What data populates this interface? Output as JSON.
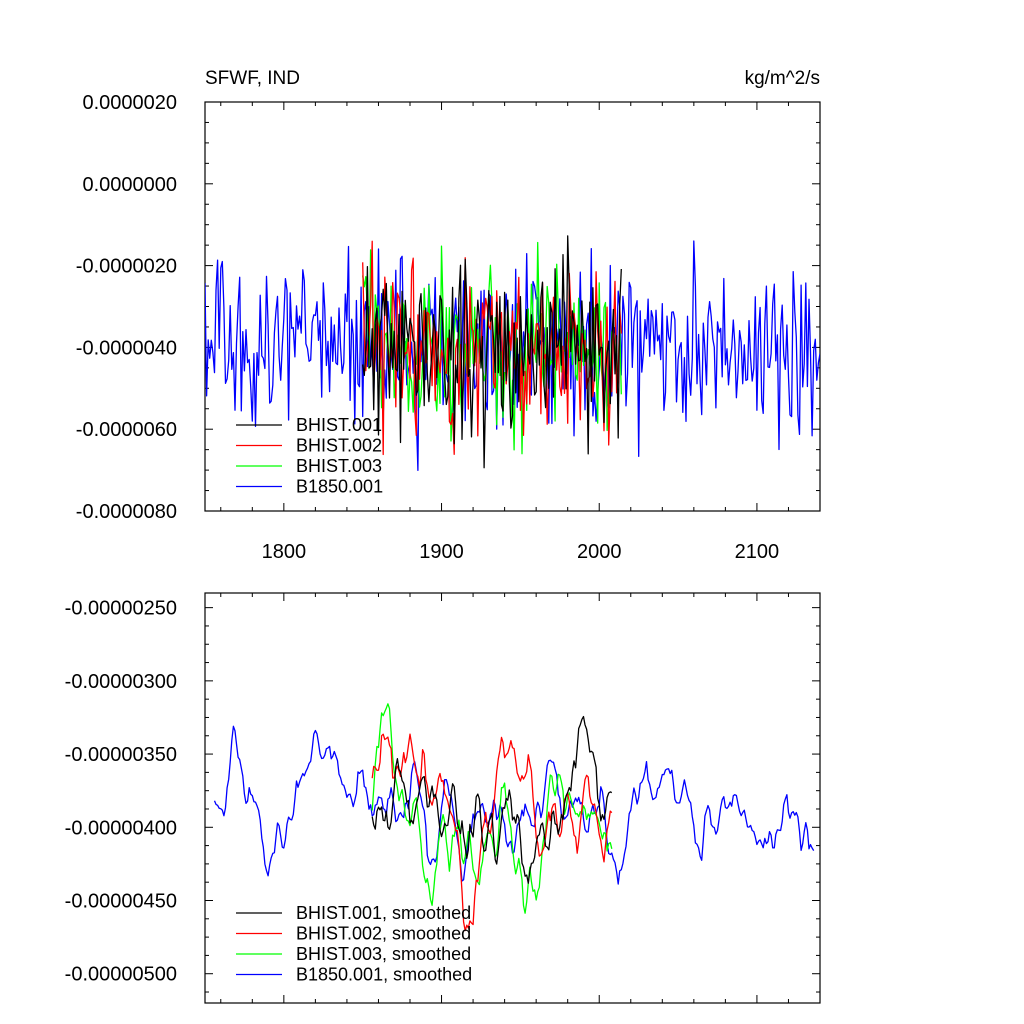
{
  "chart_data": [
    {
      "type": "line",
      "title_left": "SFWF, IND",
      "title_right": "kg/m^2/s",
      "xlim": [
        1750,
        2140
      ],
      "ylim": [
        -8e-06,
        2e-06
      ],
      "xticks": [
        1800,
        1900,
        2000,
        2100
      ],
      "xtick_labels": [
        "1800",
        "1900",
        "2000",
        "2100"
      ],
      "yticks": [
        -8e-06,
        -6e-06,
        -4e-06,
        -2e-06,
        0.0,
        2e-06
      ],
      "ytick_labels": [
        "-0.0000080",
        "-0.0000060",
        "-0.0000040",
        "-0.0000020",
        "0.0000000",
        "0.0000020"
      ],
      "legend_position": "bottom-left",
      "series": [
        {
          "name": "BHIST.001",
          "color": "#000000",
          "x_start": 1850,
          "x_end": 2014,
          "mean": -4e-06,
          "amp": 1.2e-06,
          "seed": 11
        },
        {
          "name": "BHIST.002",
          "color": "#ff0000",
          "x_start": 1850,
          "x_end": 2014,
          "mean": -4e-06,
          "amp": 1.2e-06,
          "seed": 23
        },
        {
          "name": "BHIST.003",
          "color": "#00ff00",
          "x_start": 1850,
          "x_end": 2014,
          "mean": -4e-06,
          "amp": 1.2e-06,
          "seed": 37
        },
        {
          "name": "B1850.001",
          "color": "#0000ff",
          "x_start": 1750,
          "x_end": 2140,
          "mean": -4e-06,
          "amp": 1.2e-06,
          "seed": 5
        }
      ]
    },
    {
      "type": "line",
      "xlim": [
        1750,
        2140
      ],
      "ylim": [
        -5.2e-06,
        -2.4e-06
      ],
      "xticks": [
        1800,
        1900,
        2000,
        2100
      ],
      "yticks": [
        -5e-06,
        -4.5e-06,
        -4e-06,
        -3.5e-06,
        -3e-06,
        -2.5e-06
      ],
      "ytick_labels": [
        "-0.00000500",
        "-0.00000450",
        "-0.00000400",
        "-0.00000350",
        "-0.00000300",
        "-0.00000250"
      ],
      "legend_position": "bottom-left",
      "series": [
        {
          "name": "BHIST.001, smoothed",
          "color": "#000000",
          "x_start": 1856,
          "x_end": 2008,
          "mean": -3.9e-06,
          "amp": 5e-07,
          "seed": 11
        },
        {
          "name": "BHIST.002, smoothed",
          "color": "#ff0000",
          "x_start": 1856,
          "x_end": 2008,
          "mean": -3.8e-06,
          "amp": 5e-07,
          "seed": 23
        },
        {
          "name": "BHIST.003, smoothed",
          "color": "#00ff00",
          "x_start": 1856,
          "x_end": 2008,
          "mean": -4e-06,
          "amp": 5e-07,
          "seed": 37
        },
        {
          "name": "B1850.001, smoothed",
          "color": "#0000ff",
          "x_start": 1756,
          "x_end": 2136,
          "mean": -3.9e-06,
          "amp": 4e-07,
          "seed": 5
        }
      ]
    }
  ]
}
